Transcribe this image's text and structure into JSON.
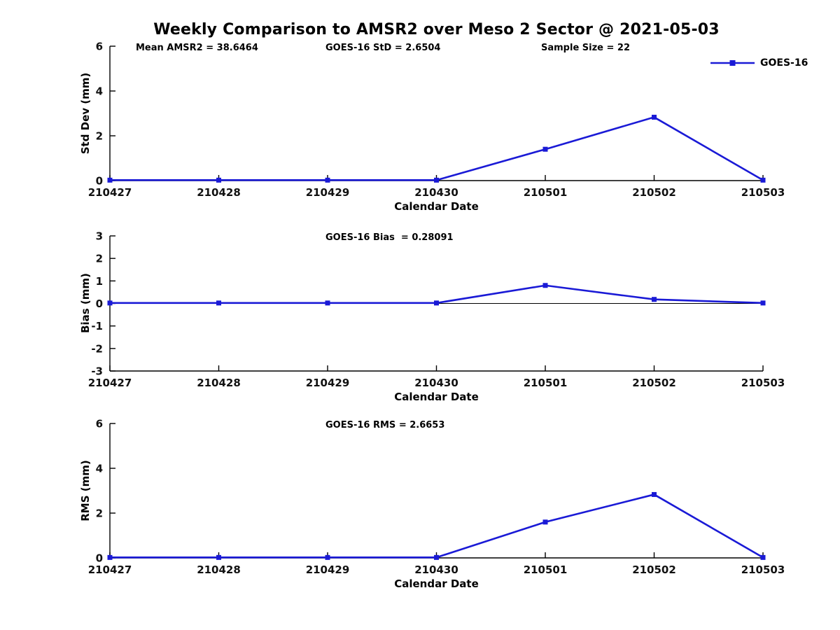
{
  "title": "Weekly Comparison to AMSR2 over Meso 2 Sector @ 2021-05-03",
  "legend": {
    "label": "GOES-16",
    "position": "top-right"
  },
  "colors": {
    "line": "#1a1ad6",
    "axis": "#000000",
    "text": "#000000"
  },
  "chart_data": [
    {
      "type": "line",
      "ylabel": "Std Dev (mm)",
      "xlabel": "Calendar Date",
      "x": [
        "210427",
        "210428",
        "210429",
        "210430",
        "210501",
        "210502",
        "210503"
      ],
      "series": [
        {
          "name": "GOES-16",
          "values": [
            0.02,
            0.02,
            0.02,
            0.02,
            1.4,
            2.83,
            0.02
          ]
        }
      ],
      "ylim": [
        0,
        6
      ],
      "yticks": [
        0,
        2,
        4,
        6
      ],
      "grid": false,
      "zero_line": false,
      "show_legend": true,
      "annotations": [
        {
          "text": "Mean AMSR2 = 38.6464"
        },
        {
          "text": "GOES-16 StD = 2.6504"
        },
        {
          "text": "Sample Size = 22"
        }
      ]
    },
    {
      "type": "line",
      "ylabel": "Bias (mm)",
      "xlabel": "Calendar Date",
      "x": [
        "210427",
        "210428",
        "210429",
        "210430",
        "210501",
        "210502",
        "210503"
      ],
      "series": [
        {
          "name": "GOES-16",
          "values": [
            0.02,
            0.02,
            0.02,
            0.02,
            0.8,
            0.18,
            0.02
          ]
        }
      ],
      "ylim": [
        -3,
        3
      ],
      "yticks": [
        3,
        2,
        1,
        0,
        -1,
        -2,
        -3
      ],
      "grid": false,
      "zero_line": true,
      "show_legend": false,
      "annotations": [
        {
          "text": "GOES-16 Bias  = 0.28091"
        }
      ]
    },
    {
      "type": "line",
      "ylabel": "RMS (mm)",
      "xlabel": "Calendar Date",
      "x": [
        "210427",
        "210428",
        "210429",
        "210430",
        "210501",
        "210502",
        "210503"
      ],
      "series": [
        {
          "name": "GOES-16",
          "values": [
            0.02,
            0.02,
            0.02,
            0.02,
            1.6,
            2.83,
            0.02
          ]
        }
      ],
      "ylim": [
        0,
        6
      ],
      "yticks": [
        0,
        2,
        4,
        6
      ],
      "grid": false,
      "zero_line": false,
      "show_legend": false,
      "annotations": [
        {
          "text": "GOES-16 RMS = 2.6653"
        }
      ]
    }
  ]
}
